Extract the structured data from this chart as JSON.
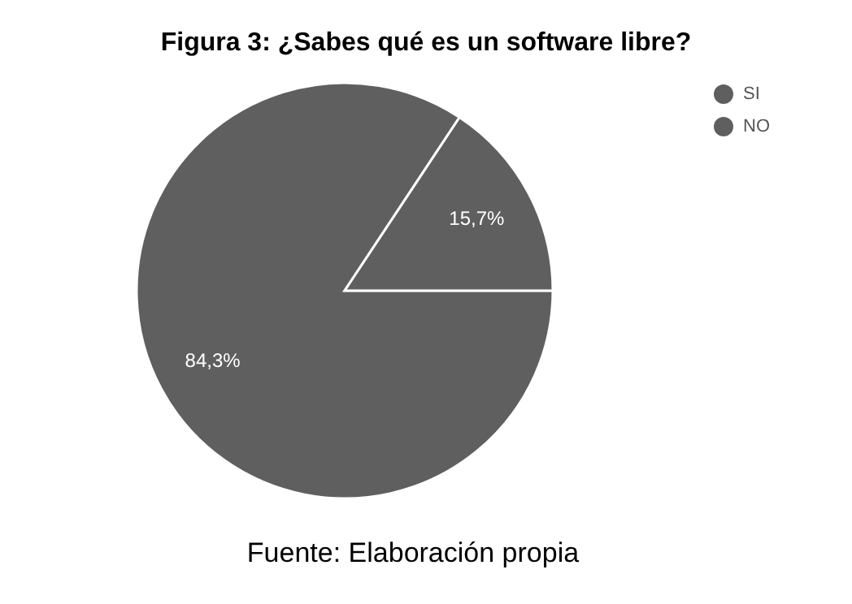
{
  "chart_data": {
    "type": "pie",
    "title": "Figura 3: ¿Sabes qué es un software libre?",
    "categories": [
      "SI",
      "NO"
    ],
    "values": [
      84.3,
      15.7
    ],
    "colors": [
      "#5f5f5f",
      "#5f5f5f"
    ],
    "value_labels": [
      "84,3%",
      "15,7%"
    ],
    "legend": "top right",
    "annotations": [
      "Fuente: Elaboración propia"
    ]
  }
}
